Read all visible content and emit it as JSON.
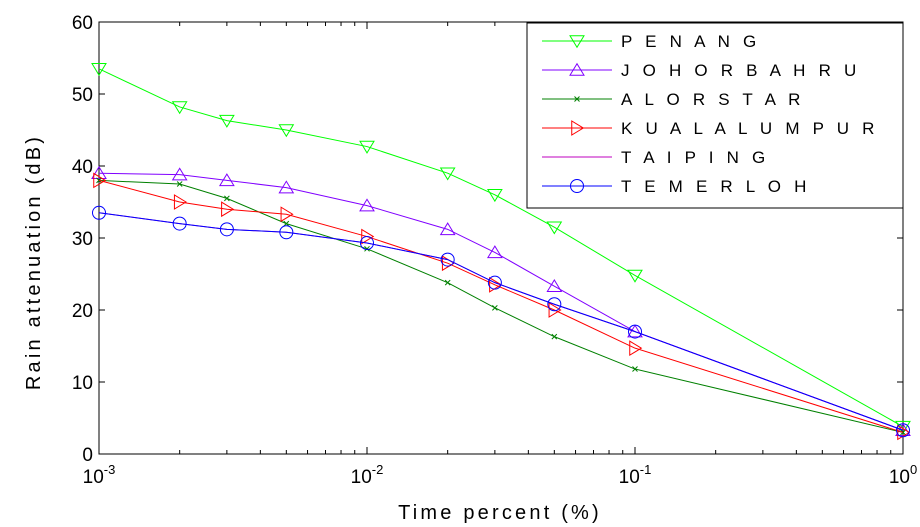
{
  "chart_data": {
    "type": "line",
    "xlabel": "Time percent (%)",
    "ylabel": "Rain attenuation (dB)",
    "xscale": "log",
    "xlim": [
      0.001,
      1
    ],
    "ylim": [
      0,
      60
    ],
    "grid": false,
    "legend_position": "top-right",
    "x_tick_labels": [
      {
        "value": 0.001,
        "base": "10",
        "exp": "-3"
      },
      {
        "value": 0.01,
        "base": "10",
        "exp": "-2"
      },
      {
        "value": 0.1,
        "base": "10",
        "exp": "-1"
      },
      {
        "value": 1,
        "base": "10",
        "exp": "0"
      }
    ],
    "y_ticks": [
      0,
      10,
      20,
      30,
      40,
      50,
      60
    ],
    "y_tick_labels": [
      "0",
      "10",
      "20",
      "30",
      "40",
      "50",
      "60"
    ],
    "series": [
      {
        "name": "P E N A N G",
        "color": "#00ff00",
        "marker": "triangle-down",
        "points": [
          [
            0.001,
            53.5
          ],
          [
            0.002,
            48.2
          ],
          [
            0.003,
            46.3
          ],
          [
            0.005,
            45.0
          ],
          [
            0.01,
            42.7
          ],
          [
            0.02,
            39.0
          ],
          [
            0.03,
            36.0
          ],
          [
            0.05,
            31.5
          ],
          [
            0.1,
            24.8
          ],
          [
            1,
            3.8
          ]
        ]
      },
      {
        "name": "J O H O R  B A H R U",
        "color": "#8000ff",
        "marker": "triangle-up",
        "points": [
          [
            0.001,
            39.0
          ],
          [
            0.002,
            38.8
          ],
          [
            0.003,
            38.0
          ],
          [
            0.005,
            37.0
          ],
          [
            0.01,
            34.5
          ],
          [
            0.02,
            31.2
          ],
          [
            0.03,
            28.0
          ],
          [
            0.05,
            23.3
          ],
          [
            0.1,
            17.0
          ],
          [
            1,
            3.3
          ]
        ]
      },
      {
        "name": "A L O R  S T A R",
        "color": "#008000",
        "marker": "x",
        "points": [
          [
            0.001,
            38.0
          ],
          [
            0.002,
            37.5
          ],
          [
            0.003,
            35.5
          ],
          [
            0.005,
            32.0
          ],
          [
            0.01,
            28.5
          ],
          [
            0.02,
            23.8
          ],
          [
            0.03,
            20.3
          ],
          [
            0.05,
            16.3
          ],
          [
            0.1,
            11.8
          ],
          [
            1,
            3.0
          ]
        ]
      },
      {
        "name": "K U A L A  L U M P U R",
        "color": "#ff0000",
        "marker": "triangle-right",
        "points": [
          [
            0.001,
            38.0
          ],
          [
            0.002,
            35.0
          ],
          [
            0.003,
            34.0
          ],
          [
            0.005,
            33.3
          ],
          [
            0.01,
            30.2
          ],
          [
            0.02,
            26.5
          ],
          [
            0.03,
            23.5
          ],
          [
            0.05,
            20.0
          ],
          [
            0.1,
            14.7
          ],
          [
            1,
            3.0
          ]
        ]
      },
      {
        "name": "T A I P I N G",
        "color": "#bf00bf",
        "marker": "none",
        "points": [
          [
            0.001,
            33.5
          ],
          [
            0.002,
            32.0
          ],
          [
            0.003,
            31.2
          ],
          [
            0.005,
            30.8
          ],
          [
            0.01,
            29.3
          ],
          [
            0.02,
            27.0
          ],
          [
            0.03,
            23.8
          ],
          [
            0.05,
            20.8
          ],
          [
            0.1,
            17.0
          ],
          [
            1,
            3.3
          ]
        ]
      },
      {
        "name": "T E M E R L O H",
        "color": "#0000ff",
        "marker": "circle",
        "points": [
          [
            0.001,
            33.5
          ],
          [
            0.002,
            32.0
          ],
          [
            0.003,
            31.2
          ],
          [
            0.005,
            30.8
          ],
          [
            0.01,
            29.3
          ],
          [
            0.02,
            27.0
          ],
          [
            0.03,
            23.8
          ],
          [
            0.05,
            20.8
          ],
          [
            0.1,
            17.0
          ],
          [
            1,
            3.3
          ]
        ]
      }
    ]
  }
}
